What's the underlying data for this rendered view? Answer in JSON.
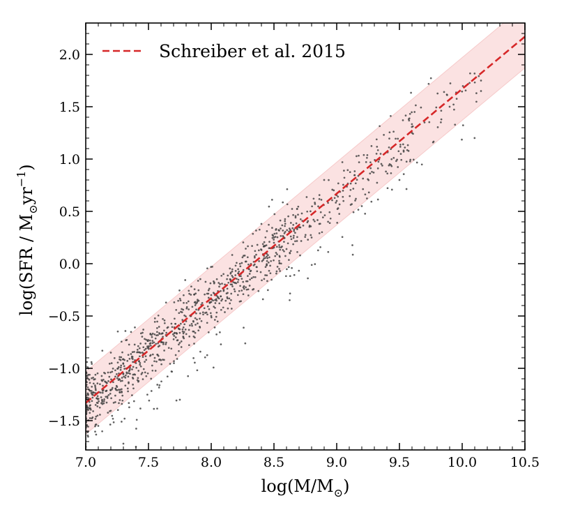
{
  "chart_data": {
    "type": "scatter",
    "title": "",
    "xlabel": "log(M/M",
    "xlabel_sub": "⊙",
    "xlabel_end": ")",
    "ylabel": "log(SFR / M",
    "ylabel_sub": "⊙",
    "ylabel_mid": "yr",
    "ylabel_sup": "−1",
    "ylabel_end": ")",
    "xlim": [
      7.0,
      10.5
    ],
    "ylim": [
      -1.78,
      2.3
    ],
    "xticks": [
      7.0,
      7.5,
      8.0,
      8.5,
      9.0,
      9.5,
      10.0,
      10.5
    ],
    "xtick_labels": [
      "7.0",
      "7.5",
      "8.0",
      "8.5",
      "9.0",
      "9.5",
      "10.0",
      "10.5"
    ],
    "yticks": [
      -1.5,
      -1.0,
      -0.5,
      0.0,
      0.5,
      1.0,
      1.5,
      2.0
    ],
    "ytick_labels": [
      "−1.5",
      "−1.0",
      "−0.5",
      "0.0",
      "0.5",
      "1.0",
      "1.5",
      "2.0"
    ],
    "legend": {
      "position": "top-left",
      "entries": [
        {
          "label": "Schreiber et al. 2015",
          "style": "dashed",
          "color": "#d62728"
        }
      ]
    },
    "fit_line": {
      "name": "Schreiber et al. 2015",
      "x": [
        7.0,
        10.5
      ],
      "y": [
        -1.33,
        2.17
      ],
      "color": "#d62728"
    },
    "scatter_band": {
      "halfwidth": 0.3,
      "color": "#f7c6c6"
    },
    "scatter": {
      "color": "#444444",
      "approx_count": 1100,
      "x_range": [
        7.0,
        10.15
      ],
      "relation": "y ≈ x − 8.33",
      "scatter_dex": 0.16,
      "sample_points": [
        [
          7.02,
          -1.0
        ],
        [
          7.05,
          -1.25
        ],
        [
          7.1,
          -1.55
        ],
        [
          7.2,
          -0.85
        ],
        [
          7.3,
          -1.05
        ],
        [
          7.4,
          -0.95
        ],
        [
          7.5,
          -0.8
        ],
        [
          7.6,
          -0.75
        ],
        [
          7.75,
          -1.3
        ],
        [
          7.8,
          -0.55
        ],
        [
          8.0,
          -0.3
        ],
        [
          8.1,
          -0.25
        ],
        [
          8.3,
          -0.05
        ],
        [
          8.5,
          0.2
        ],
        [
          8.7,
          0.35
        ],
        [
          8.9,
          0.8
        ],
        [
          9.0,
          0.6
        ],
        [
          9.2,
          0.55
        ],
        [
          9.35,
          1.05
        ],
        [
          9.5,
          0.8
        ],
        [
          9.6,
          1.25
        ],
        [
          9.7,
          1.35
        ],
        [
          9.9,
          1.5
        ],
        [
          10.15,
          1.75
        ],
        [
          10.15,
          1.65
        ],
        [
          8.4,
          0.38
        ],
        [
          7.3,
          -1.72
        ],
        [
          7.4,
          -1.75
        ],
        [
          7.0,
          -1.75
        ]
      ]
    }
  }
}
